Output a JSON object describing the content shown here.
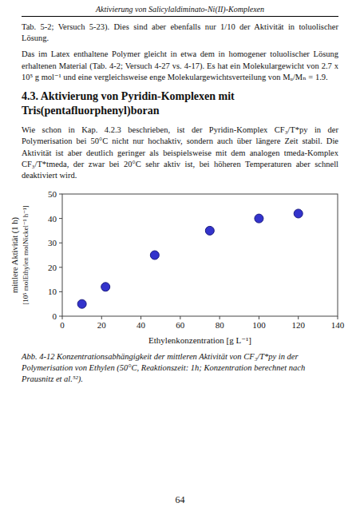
{
  "chart_data": {
    "type": "scatter",
    "x": [
      10,
      22,
      47,
      75,
      100,
      120
    ],
    "values": [
      5,
      12,
      25,
      35,
      40,
      42
    ],
    "xlim": [
      0,
      140
    ],
    "ylim": [
      0,
      50
    ],
    "xticks": [
      0,
      20,
      40,
      60,
      80,
      100,
      120,
      140
    ],
    "yticks": [
      0,
      10,
      20,
      30,
      40,
      50
    ],
    "xlabel": "Ethylenkonzentration [g L⁻¹]",
    "ylabel": [
      "mittlere Aktivität (1 h)",
      "[10⁵ molEthylen molNickel⁻¹ h⁻¹]"
    ],
    "color": "#3333cc",
    "marker": "circle",
    "grid": false
  },
  "page": {
    "header": "Aktivierung von Salicylaldiminato-Ni(II)-Komplexen",
    "body": [
      "Tab. 5-2; Versuch 5-23). Dies sind aber ebenfalls nur 1/10 der Aktivität in toluolischer Lösung.",
      "Das im Latex enthaltene Polymer gleicht in etwa dem in homogener toluolischer Lösung erhaltenen Material (Tab. 4-2; Versuch 4-27 vs. 4-17). Es hat ein Molekulargewicht von 2.7 x 10⁵ g mol⁻¹ und eine vergleichsweise enge Molekulargewichtsverteilung von Mᵤ/Mₙ = 1.9."
    ],
    "heading": "4.3.  Aktivierung von Pyridin-Komplexen mit Tris(pentafluorphenyl)boran",
    "body_after": [
      "Wie schon in Kap. 4.2.3 beschrieben, ist der Pyridin-Komplex CF₃/T*py in der Polymerisation bei 50°C nicht nur hochaktiv, sondern auch über längere Zeit stabil. Die Aktivität ist aber deutlich geringer als beispielsweise mit dem analogen tmeda-Komplex CF₃/T*tmeda, der zwar bei 20°C sehr aktiv ist, bei höheren Temperaturen aber schnell deaktiviert wird."
    ],
    "caption": "Abb. 4-12 Konzentrationsabhängigkeit der mittleren Aktivität von CF₃/T*py in der Polymerisation von Ethylen (50°C, Reaktionszeit: 1h; Konzentration berechnet nach Prausnitz et al.⁵²).",
    "page_number": "64"
  }
}
